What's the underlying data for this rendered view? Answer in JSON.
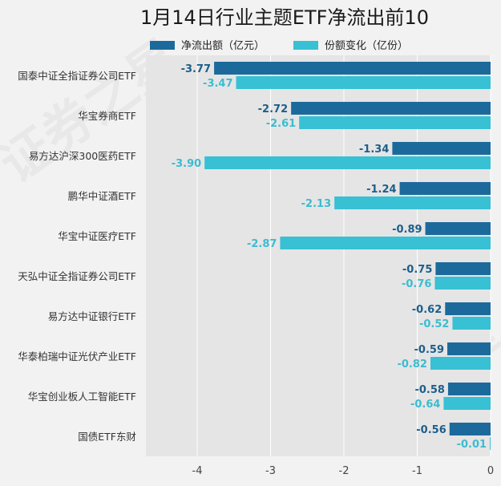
{
  "chart_data": {
    "type": "bar",
    "orientation": "horizontal",
    "title": "1月14日行业主题ETF净流出前10",
    "categories": [
      "国泰中证全指证券公司ETF",
      "华宝券商ETF",
      "易方达沪深300医药ETF",
      "鹏华中证酒ETF",
      "华宝中证医疗ETF",
      "天弘中证全指证券公司ETF",
      "易方达中证银行ETF",
      "华泰柏瑞中证光伏产业ETF",
      "华宝创业板人工智能ETF",
      "国债ETF东财"
    ],
    "series": [
      {
        "name": "净流出额（亿元）",
        "color": "#1c6a9c",
        "labelColor": "#1c5f8c",
        "values": [
          -3.77,
          -2.72,
          -1.34,
          -1.24,
          -0.89,
          -0.75,
          -0.62,
          -0.59,
          -0.58,
          -0.56
        ],
        "labels": [
          "-3.77",
          "-2.72",
          "-1.34",
          "-1.24",
          "-0.89",
          "-0.75",
          "-0.62",
          "-0.59",
          "-0.58",
          "-0.56"
        ]
      },
      {
        "name": "份额变化（亿份）",
        "color": "#38c0d4",
        "labelColor": "#3bbcd0",
        "values": [
          -3.47,
          -2.61,
          -3.9,
          -2.13,
          -2.87,
          -0.76,
          -0.52,
          -0.82,
          -0.64,
          -0.01
        ],
        "labels": [
          "-3.47",
          "-2.61",
          "-3.90",
          "-2.13",
          "-2.87",
          "-0.76",
          "-0.52",
          "-0.82",
          "-0.64",
          "-0.01"
        ]
      }
    ],
    "xlim": [
      -4.7,
      0
    ],
    "xticks": [
      -4,
      -3,
      -2,
      -1,
      0
    ],
    "xtick_labels": [
      "-4",
      "-3",
      "-2",
      "-1",
      "0"
    ],
    "grid": true,
    "legend": "top"
  },
  "watermark": "证券之星"
}
